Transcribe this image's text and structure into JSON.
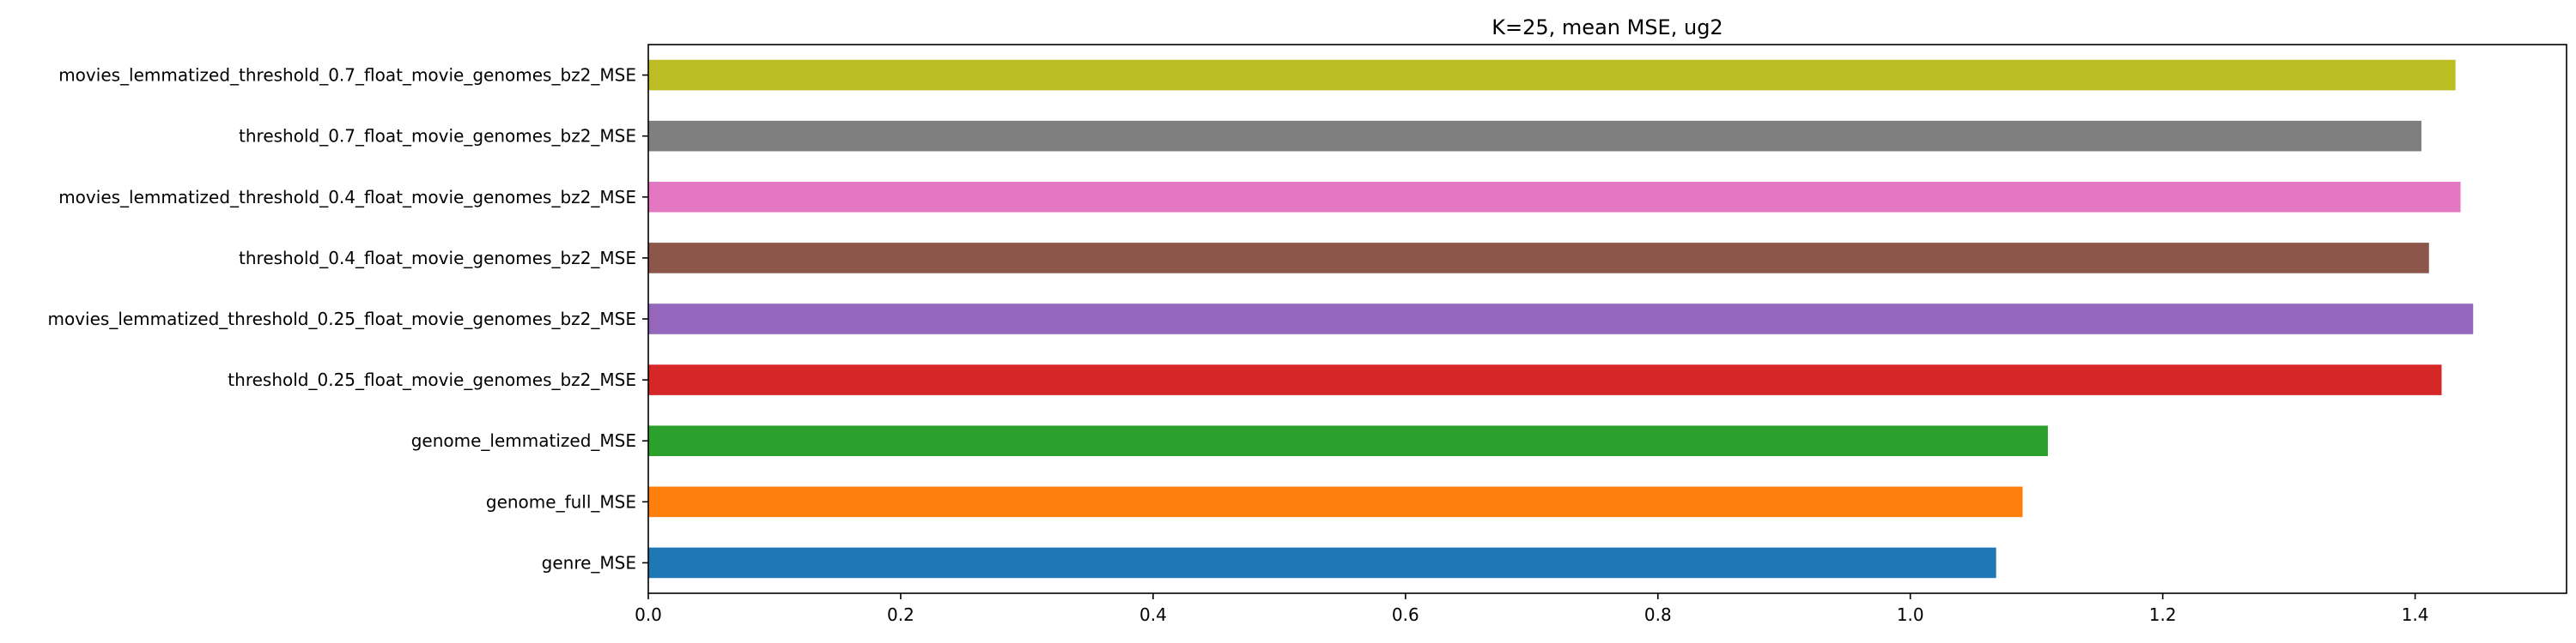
{
  "chart_data": {
    "type": "bar",
    "orientation": "horizontal",
    "title": "K=25, mean MSE, ug2",
    "xlabel": "",
    "ylabel": "",
    "xlim": [
      0,
      1.52
    ],
    "xticks": [
      0.0,
      0.2,
      0.4,
      0.6,
      0.8,
      1.0,
      1.2,
      1.4
    ],
    "xtick_labels": [
      "0.0",
      "0.2",
      "0.4",
      "0.6",
      "0.8",
      "1.0",
      "1.2",
      "1.4"
    ],
    "grid": false,
    "categories": [
      "genre_MSE",
      "genome_full_MSE",
      "genome_lemmatized_MSE",
      "threshold_0.25_float_movie_genomes_bz2_MSE",
      "movies_lemmatized_threshold_0.25_float_movie_genomes_bz2_MSE",
      "threshold_0.4_float_movie_genomes_bz2_MSE",
      "movies_lemmatized_threshold_0.4_float_movie_genomes_bz2_MSE",
      "threshold_0.7_float_movie_genomes_bz2_MSE",
      "movies_lemmatized_threshold_0.7_float_movie_genomes_bz2_MSE"
    ],
    "values": [
      1.068,
      1.089,
      1.109,
      1.421,
      1.446,
      1.411,
      1.436,
      1.405,
      1.432
    ],
    "colors": [
      "#1f77b4",
      "#ff7f0e",
      "#2ca02c",
      "#d62728",
      "#9467bd",
      "#8c564b",
      "#e377c2",
      "#7f7f7f",
      "#bcbd22"
    ]
  }
}
